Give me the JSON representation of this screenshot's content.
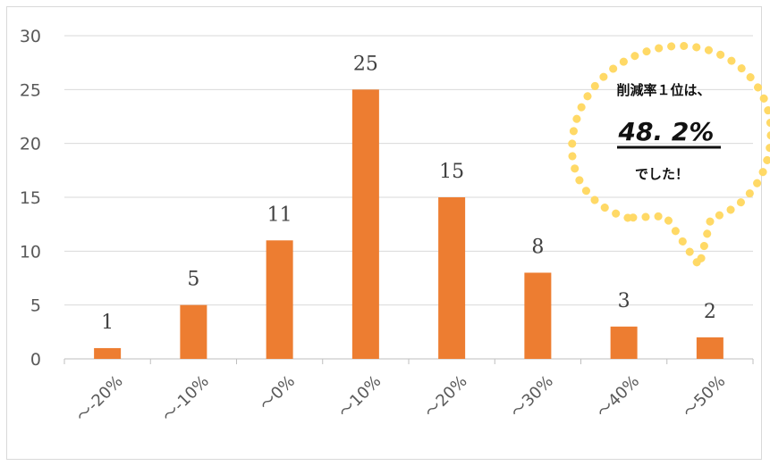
{
  "chart_data": {
    "type": "bar",
    "categories": [
      "～-20%",
      "～-10%",
      "～0%",
      "～10%",
      "～20%",
      "～30%",
      "～40%",
      "～50%"
    ],
    "values": [
      1,
      5,
      11,
      25,
      15,
      8,
      3,
      2
    ],
    "ylim": [
      0,
      30
    ],
    "yticks": [
      0,
      5,
      10,
      15,
      20,
      25,
      30
    ],
    "grid": true,
    "bar_color": "#ED7D31",
    "data_labels": true
  },
  "callout": {
    "line1": "削減率１位は、",
    "line2": "48. 2%",
    "line3": "でした！",
    "dot_color": "#FFD966"
  }
}
